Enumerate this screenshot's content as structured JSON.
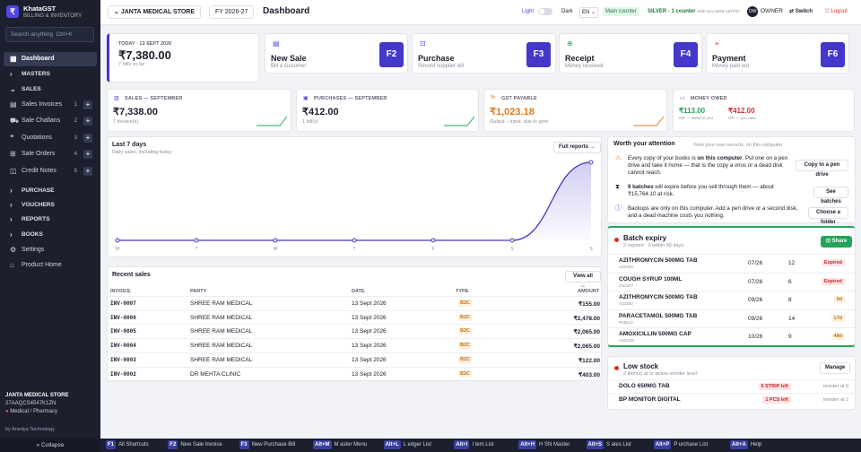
{
  "app": {
    "name": "KhataGST",
    "tagline": "BILLING & INVENTORY",
    "logo_letter": "₹"
  },
  "search": {
    "placeholder": "Search anything",
    "shortcut": "Ctrl+K"
  },
  "sidebar": {
    "items": [
      {
        "label": "Dashboard",
        "icon": "grid-icon"
      },
      {
        "label": "MASTERS"
      },
      {
        "label": "SALES"
      },
      {
        "label": "Sales Invoices",
        "count": "1"
      },
      {
        "label": "Sale Challans",
        "count": "2"
      },
      {
        "label": "Quotations",
        "count": "3"
      },
      {
        "label": "Sale Orders",
        "count": "4"
      },
      {
        "label": "Credit Notes",
        "count": "5"
      },
      {
        "label": "PURCHASE"
      },
      {
        "label": "VOUCHERS"
      },
      {
        "label": "REPORTS"
      },
      {
        "label": "BOOKS"
      },
      {
        "label": "Settings"
      },
      {
        "label": "Product Home"
      }
    ],
    "store_name": "JANTA MEDICAL STORE",
    "gstin": "27AAQCS4547K1ZN",
    "store_type": "Medical / Pharmacy",
    "byline": "by Anedya Technology",
    "collapse": "« Collapse"
  },
  "topbar": {
    "store": "JANTA MEDICAL STORE",
    "fy": "FY 2026-27",
    "title": "Dashboard",
    "theme_light": "Light",
    "theme_dark": "Dark",
    "lang": "EN",
    "counter": "Main counter",
    "license": "SILVER · 1 counter",
    "license_code": "ANE-SLV-2026-A67F67",
    "role": "OWNER",
    "avatar": "OW",
    "switch": "Switch",
    "logout": "Logout"
  },
  "today": {
    "label": "TODAY · 13 SEPT 2026",
    "value": "₹7,380.00",
    "sub": "7 bills so far"
  },
  "quick_actions": [
    {
      "title": "New Sale",
      "sub": "Bill a customer",
      "key": "F2",
      "icon": "document-icon"
    },
    {
      "title": "Purchase",
      "sub": "Record supplier bill",
      "key": "F3",
      "icon": "inbox-icon"
    },
    {
      "title": "Receipt",
      "sub": "Money received",
      "key": "F4",
      "icon": "receipt-icon"
    },
    {
      "title": "Payment",
      "sub": "Money paid out",
      "key": "F6",
      "icon": "send-icon"
    }
  ],
  "stats": [
    {
      "label": "SALES — SEPTEMBER",
      "value": "₹7,338.00",
      "sub": "7 invoice(s)"
    },
    {
      "label": "PURCHASES — SEPTEMBER",
      "value": "₹412.00",
      "sub": "1 bill(s)"
    },
    {
      "label": "GST PAYABLE",
      "value": "₹1,023.18",
      "sub": "Output − input, due to govt"
    },
    {
      "label": "MONEY OWED",
      "owed_to_you": "₹113.00",
      "owed_to_you_label": "OR — owed to you",
      "you_owe": "₹412.00",
      "you_owe_label": "OR — you owe"
    }
  ],
  "chart": {
    "title": "Last 7 days",
    "subtitle": "Daily sales, including today",
    "button": "Full reports →"
  },
  "chart_data": {
    "type": "area",
    "categories": [
      "M",
      "T",
      "W",
      "T",
      "F",
      "S",
      "S"
    ],
    "values": [
      0,
      0,
      0,
      0,
      0,
      0,
      7380
    ],
    "ylim": [
      0,
      7380
    ],
    "grid": false
  },
  "recent_sales": {
    "title": "Recent sales",
    "button": "View all →",
    "columns": [
      "INVOICE",
      "PARTY",
      "DATE",
      "TYPE",
      "AMOUNT"
    ],
    "rows": [
      {
        "invoice": "INV-0007",
        "party": "SHREE RAM MEDICAL",
        "date": "13 Sept 2026",
        "type": "B2C",
        "amount": "₹155.00"
      },
      {
        "invoice": "INV-0006",
        "party": "SHREE RAM MEDICAL",
        "date": "13 Sept 2026",
        "type": "B2C",
        "amount": "₹2,478.00"
      },
      {
        "invoice": "INV-0005",
        "party": "SHREE RAM MEDICAL",
        "date": "13 Sept 2026",
        "type": "B2C",
        "amount": "₹2,065.00"
      },
      {
        "invoice": "INV-0004",
        "party": "SHREE RAM MEDICAL",
        "date": "13 Sept 2026",
        "type": "B2C",
        "amount": "₹2,065.00"
      },
      {
        "invoice": "INV-0003",
        "party": "SHREE RAM MEDICAL",
        "date": "13 Sept 2026",
        "type": "B2C",
        "amount": "₹122.00"
      },
      {
        "invoice": "INV-0002",
        "party": "DR MEHTA CLINIC",
        "date": "13 Sept 2026",
        "type": "B2C",
        "amount": "₹403.00"
      }
    ]
  },
  "attention": {
    "title": "Worth your attention",
    "sub": "from your own records, on this computer",
    "items": [
      {
        "text_a": "Every copy of your books is ",
        "text_b": "on this computer",
        "text_c": ". Put one on a pen drive and take it home — that is the copy a virus or a dead disk cannot reach.",
        "button": "Copy to a pen drive",
        "icon": "warning-icon"
      },
      {
        "text_a": "",
        "text_b": "9 batches",
        "text_c": " will expire before you sell through them — about ₹15,764.10 at risk.",
        "button": "See batches",
        "icon": "hourglass-icon"
      },
      {
        "text_a": "Backups are only on this computer. Add a pen drive or a second disk, and a dead machine costs you nothing.",
        "text_b": "",
        "text_c": "",
        "button": "Choose a folder",
        "icon": "info-icon"
      }
    ]
  },
  "batch_expiry": {
    "title": "Batch expiry",
    "sub": "2 expired · 3 within 90 days",
    "button": "Share",
    "rows": [
      {
        "name": "AZITHROMYCIN 500MG TAB",
        "code": "AZ2200",
        "exp": "07/26",
        "qty": "12",
        "status": "Expired",
        "tone": "red"
      },
      {
        "name": "COUGH SYRUP 100ML",
        "code": "CS2207",
        "exp": "07/26",
        "qty": "6",
        "status": "Expired",
        "tone": "red"
      },
      {
        "name": "AZITHROMYCIN 500MG TAB",
        "code": "AZ2300",
        "exp": "09/26",
        "qty": "8",
        "status": "0d",
        "tone": "amber"
      },
      {
        "name": "PARACETAMOL 500MG TAB",
        "code": "PA9410",
        "exp": "09/26",
        "qty": "14",
        "status": "17d",
        "tone": "amber"
      },
      {
        "name": "AMOXICILLIN 500MG CAP",
        "code": "AM1418",
        "exp": "10/26",
        "qty": "9",
        "status": "48d",
        "tone": "amber"
      }
    ]
  },
  "low_stock": {
    "title": "Low stock",
    "sub": "2 item(s) at or below reorder level",
    "button": "Manage",
    "rows": [
      {
        "name": "DOLO 650MG TAB",
        "stock": "0 STRIP left",
        "reorder": "reorder at 0"
      },
      {
        "name": "BP MONITOR DIGITAL",
        "stock": "1 PCS left",
        "reorder": "reorder at 2"
      }
    ]
  },
  "shortcuts": [
    {
      "key": "F1",
      "label": "All Shortcuts"
    },
    {
      "key": "F2",
      "label": "New Sale Invoice"
    },
    {
      "key": "F3",
      "label": "New Purchase Bill"
    },
    {
      "key": "Alt+M",
      "label": "M aster Menu"
    },
    {
      "key": "Alt+L",
      "label": "L edger List"
    },
    {
      "key": "Alt+I",
      "label": "I tem List"
    },
    {
      "key": "Alt+H",
      "label": "H SN Master"
    },
    {
      "key": "Alt+S",
      "label": "S ales List"
    },
    {
      "key": "Alt+P",
      "label": "P urchase List"
    },
    {
      "key": "Alt+A",
      "label": "Help"
    }
  ],
  "colors": {
    "accent": "#4338ca",
    "sidebar": "#1b1f2e",
    "green": "#22a55a",
    "red": "#d32f2f"
  }
}
